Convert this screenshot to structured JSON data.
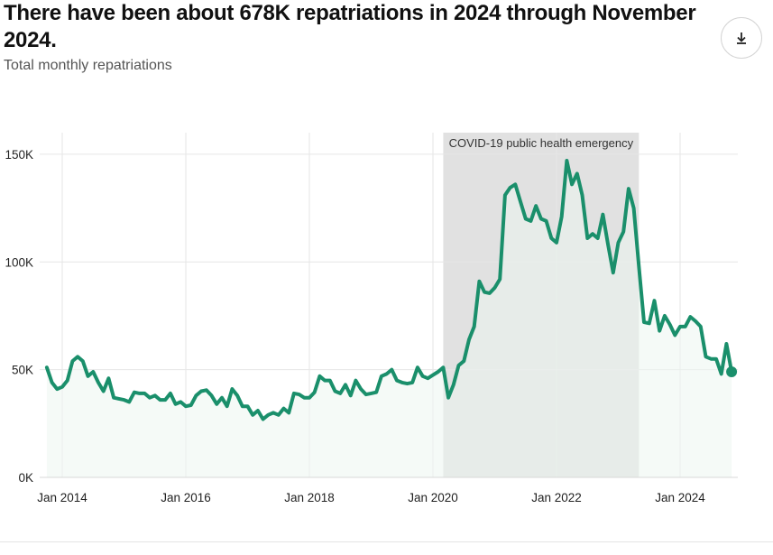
{
  "header": {
    "title": "There have been about 678K repatriations in 2024 through November 2024.",
    "subtitle": "Total monthly repatriations",
    "download_icon": "download-icon"
  },
  "colors": {
    "line": "#1a8f6b",
    "area": "#ecf5f1",
    "shade": "#dcdcdc",
    "grid": "#e6e6e6"
  },
  "chart_data": {
    "type": "area",
    "title": "",
    "xlabel": "",
    "ylabel": "",
    "ylim": [
      0,
      160000
    ],
    "yticks": [
      0,
      50000,
      100000,
      150000
    ],
    "ytick_labels": [
      "0K",
      "50K",
      "100K",
      "150K"
    ],
    "xticks": [
      "2014-01",
      "2016-01",
      "2018-01",
      "2020-01",
      "2022-01",
      "2024-01"
    ],
    "xtick_labels": [
      "Jan 2014",
      "Jan 2016",
      "Jan 2018",
      "Jan 2020",
      "Jan 2022",
      "Jan 2024"
    ],
    "grid": true,
    "annotations": [
      {
        "label": "COVID-19 public health emergency",
        "start": "2020-03",
        "end": "2023-05"
      }
    ],
    "series": [
      {
        "start": "2013-10",
        "end": "2024-11",
        "values": [
          51000,
          44000,
          41000,
          42000,
          45000,
          54000,
          56000,
          54000,
          47000,
          49000,
          44000,
          40000,
          46000,
          37000,
          36500,
          36000,
          35000,
          39500,
          39000,
          39000,
          37000,
          38000,
          36000,
          36000,
          39000,
          34000,
          35000,
          33000,
          33500,
          38000,
          40000,
          40500,
          38000,
          34000,
          37000,
          33000,
          41000,
          38000,
          33000,
          33000,
          29000,
          31000,
          27000,
          29000,
          30000,
          29000,
          32000,
          30000,
          39000,
          38500,
          37000,
          37000,
          39500,
          47000,
          45000,
          45000,
          40000,
          39000,
          43000,
          38000,
          45000,
          41000,
          38500,
          39000,
          39500,
          47000,
          48000,
          50000,
          45000,
          44000,
          43500,
          44000,
          51000,
          47000,
          46000,
          47500,
          49000,
          51000,
          37000,
          43000,
          52000,
          54000,
          64000,
          70000,
          91000,
          86000,
          85500,
          88000,
          92000,
          131000,
          134500,
          136000,
          128000,
          120000,
          119000,
          126000,
          120000,
          119000,
          111000,
          109000,
          121000,
          147000,
          136000,
          141000,
          131000,
          111000,
          113000,
          111000,
          122000,
          108000,
          95000,
          109000,
          114000,
          134000,
          125000,
          98000,
          72000,
          71500,
          82000,
          68000,
          75000,
          71000,
          66000,
          70000,
          70000,
          74500,
          72500,
          70000,
          56000,
          55000,
          55000,
          48000,
          62000,
          49000
        ]
      }
    ]
  }
}
